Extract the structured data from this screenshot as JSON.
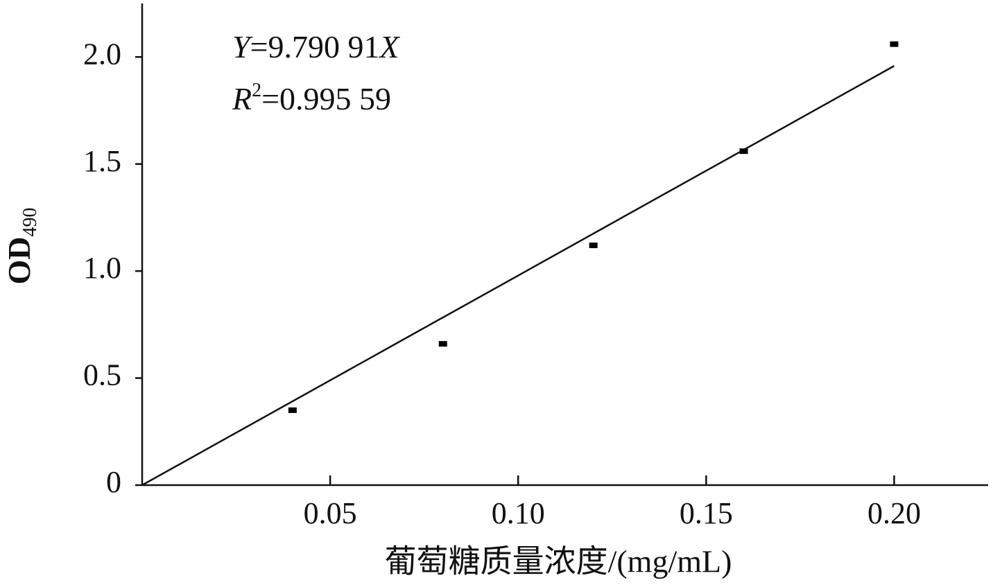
{
  "chart_data": {
    "type": "scatter",
    "x": [
      0.04,
      0.08,
      0.12,
      0.16,
      0.2
    ],
    "series": [
      {
        "color": "#000000",
        "values": [
          0.35,
          0.66,
          1.12,
          1.56,
          2.06
        ]
      }
    ],
    "fit": {
      "slope": 9.79091,
      "color": "#000000"
    },
    "annotations": [
      {
        "var": "Y",
        "text": "=9.790 91",
        "var2": "X"
      },
      {
        "var": "R",
        "sup": "2",
        "text": "=0.995 59"
      }
    ],
    "xlabel": "葡萄糖质量浓度/(mg/mL)",
    "ylabel": {
      "text": "OD",
      "sub": "490"
    },
    "xlim": [
      0,
      0.225
    ],
    "ylim": [
      0,
      2.25
    ],
    "xticks": [
      0.05,
      {
        "value": 0.1,
        "label": "0.10"
      },
      0.15,
      {
        "value": 0.2,
        "label": "0.20"
      }
    ],
    "yticks": [
      0,
      0.5,
      {
        "value": 1,
        "label": "1.0"
      },
      1.5,
      {
        "value": 2,
        "label": "2.0"
      }
    ],
    "grid": false
  }
}
